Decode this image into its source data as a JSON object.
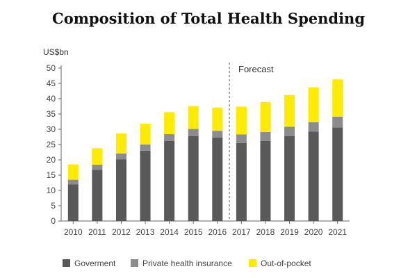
{
  "chart_data": {
    "type": "bar",
    "stacked": true,
    "title": "Composition of Total Health Spending",
    "unit_label": "US$bn",
    "forecast_label": "Forecast",
    "categories": [
      "2010",
      "2011",
      "2012",
      "2013",
      "2014",
      "2015",
      "2016",
      "2017",
      "2018",
      "2019",
      "2020",
      "2021"
    ],
    "yticks": [
      "0",
      "5",
      "10",
      "15",
      "20",
      "25",
      "30",
      "35",
      "40",
      "45",
      "50"
    ],
    "ylim": [
      0,
      50
    ],
    "grid": false,
    "legend_position": "bottom",
    "series": [
      {
        "name": "Goverment",
        "color": "#595959",
        "values": [
          12,
          16.7,
          20.2,
          23,
          26.2,
          27.8,
          27.3,
          25.5,
          26.2,
          27.8,
          29.2,
          30.6
        ]
      },
      {
        "name": "Private health insurance",
        "color": "#8c8c8c",
        "values": [
          1.5,
          1.7,
          1.9,
          2.0,
          2.2,
          2.3,
          2.2,
          2.8,
          2.9,
          3.0,
          3.1,
          3.5
        ]
      },
      {
        "name": "Out-of-pocket",
        "color": "#ffeb00",
        "values": [
          5.0,
          5.4,
          6.5,
          6.8,
          7.2,
          7.5,
          7.6,
          9.1,
          9.8,
          10.4,
          11.4,
          12.2
        ]
      }
    ]
  }
}
